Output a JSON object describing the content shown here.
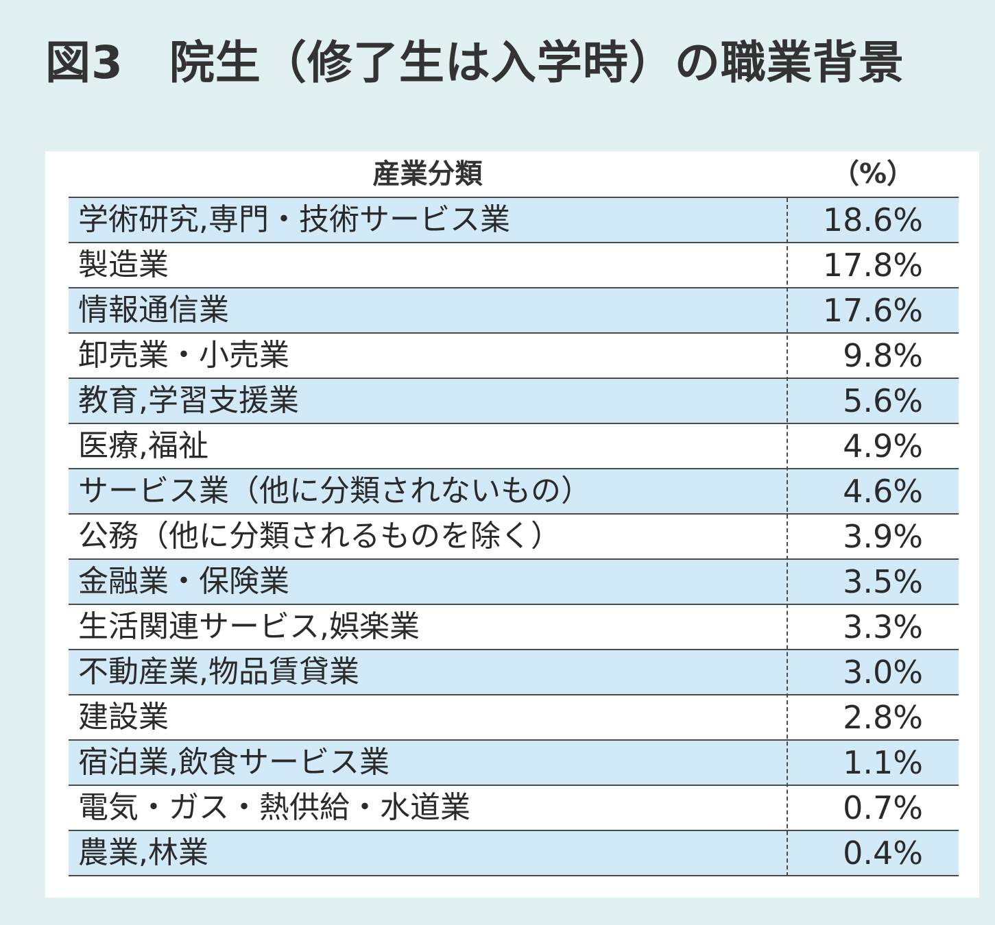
{
  "chart_data": {
    "type": "table",
    "title": "図3　院生（修了生は入学時）の職業背景",
    "columns": [
      "産業分類",
      "（%）"
    ],
    "rows": [
      {
        "category": "学術研究,専門・技術サービス業",
        "percent": "18.6%",
        "value": 18.6
      },
      {
        "category": "製造業",
        "percent": "17.8%",
        "value": 17.8
      },
      {
        "category": "情報通信業",
        "percent": "17.6%",
        "value": 17.6
      },
      {
        "category": "卸売業・小売業",
        "percent": "9.8%",
        "value": 9.8
      },
      {
        "category": "教育,学習支援業",
        "percent": "5.6%",
        "value": 5.6
      },
      {
        "category": "医療,福祉",
        "percent": "4.9%",
        "value": 4.9
      },
      {
        "category": "サービス業（他に分類されないもの）",
        "percent": "4.6%",
        "value": 4.6
      },
      {
        "category": "公務（他に分類されるものを除く）",
        "percent": "3.9%",
        "value": 3.9
      },
      {
        "category": "金融業・保険業",
        "percent": "3.5%",
        "value": 3.5
      },
      {
        "category": "生活関連サービス,娯楽業",
        "percent": "3.3%",
        "value": 3.3
      },
      {
        "category": "不動産業,物品賃貸業",
        "percent": "3.0%",
        "value": 3.0
      },
      {
        "category": "建設業",
        "percent": "2.8%",
        "value": 2.8
      },
      {
        "category": "宿泊業,飲食サービス業",
        "percent": "1.1%",
        "value": 1.1
      },
      {
        "category": "電気・ガス・熱供給・水道業",
        "percent": "0.7%",
        "value": 0.7
      },
      {
        "category": "農業,林業",
        "percent": "0.4%",
        "value": 0.4
      }
    ]
  },
  "colors": {
    "page_background": "#e1f0f1",
    "panel_background": "#ffffff",
    "shaded_row": "#d2e9f7",
    "rule": "#4a4a4a"
  }
}
